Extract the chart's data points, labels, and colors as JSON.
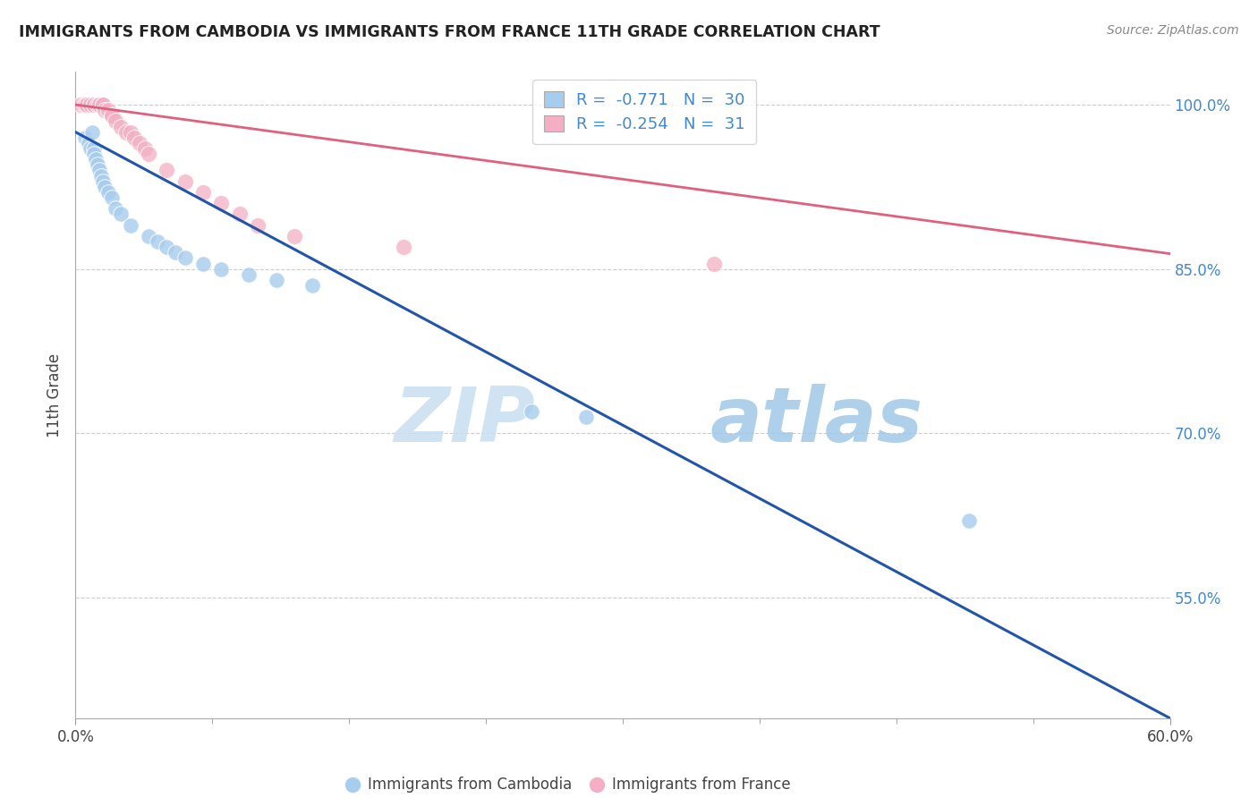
{
  "title": "IMMIGRANTS FROM CAMBODIA VS IMMIGRANTS FROM FRANCE 11TH GRADE CORRELATION CHART",
  "source": "Source: ZipAtlas.com",
  "ylabel": "11th Grade",
  "right_yticks": [
    "100.0%",
    "85.0%",
    "70.0%",
    "55.0%"
  ],
  "right_ytick_values": [
    1.0,
    0.85,
    0.7,
    0.55
  ],
  "xlim": [
    0.0,
    0.6
  ],
  "ylim": [
    0.44,
    1.03
  ],
  "blue_R": "-0.771",
  "blue_N": "30",
  "pink_R": "-0.254",
  "pink_N": "31",
  "blue_color": "#a8ccee",
  "pink_color": "#f4afc4",
  "blue_line_color": "#2255aa",
  "pink_line_color": "#e06080",
  "legend_label_blue": "Immigrants from Cambodia",
  "legend_label_pink": "Immigrants from France",
  "watermark_zip": "ZIP",
  "watermark_atlas": "atlas",
  "blue_scatter_x": [
    0.005,
    0.007,
    0.008,
    0.009,
    0.01,
    0.01,
    0.011,
    0.012,
    0.013,
    0.014,
    0.015,
    0.016,
    0.018,
    0.02,
    0.022,
    0.025,
    0.03,
    0.04,
    0.045,
    0.05,
    0.055,
    0.06,
    0.07,
    0.08,
    0.095,
    0.11,
    0.13,
    0.25,
    0.28,
    0.49
  ],
  "blue_scatter_y": [
    0.97,
    0.965,
    0.96,
    0.975,
    0.96,
    0.955,
    0.95,
    0.945,
    0.94,
    0.935,
    0.93,
    0.925,
    0.92,
    0.915,
    0.905,
    0.9,
    0.89,
    0.88,
    0.875,
    0.87,
    0.865,
    0.86,
    0.855,
    0.85,
    0.845,
    0.84,
    0.835,
    0.72,
    0.715,
    0.62
  ],
  "pink_scatter_x": [
    0.003,
    0.005,
    0.006,
    0.008,
    0.01,
    0.01,
    0.012,
    0.013,
    0.015,
    0.015,
    0.016,
    0.018,
    0.02,
    0.02,
    0.022,
    0.025,
    0.028,
    0.03,
    0.032,
    0.035,
    0.038,
    0.04,
    0.05,
    0.06,
    0.07,
    0.08,
    0.09,
    0.1,
    0.12,
    0.18,
    0.35
  ],
  "pink_scatter_y": [
    1.0,
    1.0,
    1.0,
    1.0,
    1.0,
    1.0,
    1.0,
    1.0,
    1.0,
    1.0,
    0.995,
    0.995,
    0.99,
    0.99,
    0.985,
    0.98,
    0.975,
    0.975,
    0.97,
    0.965,
    0.96,
    0.955,
    0.94,
    0.93,
    0.92,
    0.91,
    0.9,
    0.89,
    0.88,
    0.87,
    0.855
  ],
  "blue_line_x": [
    0.0,
    0.6
  ],
  "blue_line_y": [
    0.975,
    0.44
  ],
  "pink_line_x": [
    0.0,
    0.6
  ],
  "pink_line_y": [
    1.0,
    0.864
  ],
  "grid_color": "#cccccc",
  "background_color": "#ffffff",
  "title_color": "#222222",
  "axis_label_color": "#444444",
  "right_tick_color": "#4488cc",
  "stats_color": "#4488cc",
  "xtick_label_color": "#444444",
  "bottom_legend_color": "#444444"
}
